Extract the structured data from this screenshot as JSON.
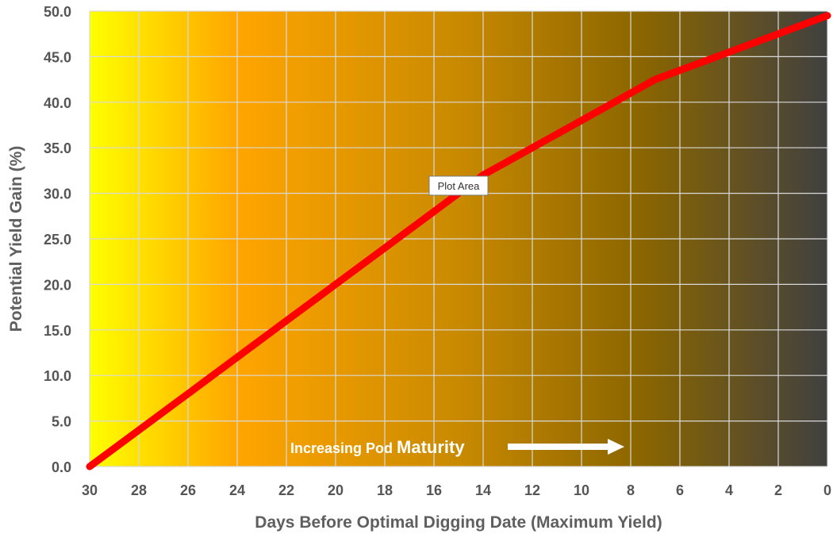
{
  "chart_data": {
    "type": "line",
    "xlabel": "Days Before Optimal Digging Date (Maximum Yield)",
    "ylabel": "Potential Yield Gain (%)",
    "x_reversed": true,
    "xlim": [
      30,
      0
    ],
    "ylim": [
      0,
      50
    ],
    "x_ticks": [
      "30",
      "28",
      "26",
      "24",
      "22",
      "20",
      "18",
      "16",
      "14",
      "12",
      "10",
      "8",
      "6",
      "4",
      "2",
      "0"
    ],
    "y_ticks": [
      "0.0",
      "5.0",
      "10.0",
      "15.0",
      "20.0",
      "25.0",
      "30.0",
      "35.0",
      "40.0",
      "45.0",
      "50.0"
    ],
    "grid": true,
    "background_gradient": [
      "#ffff00",
      "#ffa500",
      "#404040"
    ],
    "series": [
      {
        "color": "#ff0000",
        "x": [
          30,
          28,
          26,
          24,
          22,
          20,
          18,
          16,
          14,
          12,
          10,
          8,
          7,
          6,
          4,
          2,
          0
        ],
        "y": [
          0.0,
          4.0,
          8.0,
          12.0,
          16.0,
          20.0,
          24.0,
          28.0,
          32.0,
          35.0,
          38.0,
          41.0,
          42.5,
          43.5,
          45.5,
          47.5,
          49.5
        ]
      }
    ],
    "annotation": {
      "text_part1": "Increasing Pod ",
      "text_part2": "Maturity"
    },
    "tooltip": "Plot Area"
  }
}
